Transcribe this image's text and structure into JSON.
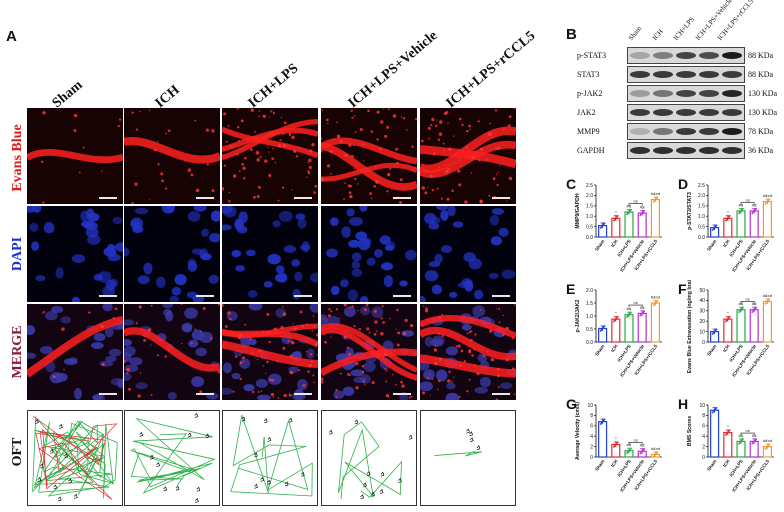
{
  "panel_a": {
    "letter": "A",
    "columns": [
      "Sham",
      "ICH",
      "ICH+LPS",
      "ICH+LPS+Vehicle",
      "ICH+LPS+rCCL5"
    ],
    "rows": [
      {
        "label": "Evans Blue",
        "color": "#e01b1b"
      },
      {
        "label": "DAPI",
        "color": "#1a2fd6"
      },
      {
        "label": "MERGE",
        "color": "#8a1a3a"
      },
      {
        "label": "OFT",
        "color": "#111111"
      }
    ]
  },
  "panel_b": {
    "letter": "B",
    "lanes": [
      "Sham",
      "ICH",
      "ICH+LPS",
      "ICH+LPS+Vehicle",
      "ICH+LPS+rCCL5"
    ],
    "bands": [
      {
        "protein": "p-STAT3",
        "size": "88 KDa"
      },
      {
        "protein": "STAT3",
        "size": "88 KDa"
      },
      {
        "protein": "p-JAK2",
        "size": "130 KDa"
      },
      {
        "protein": "JAK2",
        "size": "130 KDa"
      },
      {
        "protein": "MMP9",
        "size": "78 KDa"
      },
      {
        "protein": "GAPDH",
        "size": "36 KDa"
      }
    ]
  },
  "colors": {
    "sham": "#1f3fd6",
    "ich": "#e8262c",
    "lps": "#26a844",
    "vehicle": "#b42fd0",
    "rccl5": "#f39a2b"
  },
  "chart_data": [
    {
      "panel": "C",
      "type": "bar",
      "ylabel": "MMP9/GAPDH",
      "ylim": [
        0,
        2.5
      ],
      "yticks": [
        "0.0",
        "0.5",
        "1.0",
        "1.5",
        "2.0",
        "2.5"
      ],
      "categories": [
        "Sham",
        "ICH",
        "ICH+LPS",
        "ICH+LPS+Vehicle",
        "ICH+LPS+rCCL5"
      ],
      "values": [
        0.55,
        0.9,
        1.2,
        1.15,
        1.8
      ],
      "marks": [
        "",
        "*",
        "#&",
        "#&",
        "#&cd"
      ],
      "ns": "ns"
    },
    {
      "panel": "D",
      "type": "bar",
      "ylabel": "p-STAT3/STAT3",
      "ylim": [
        0,
        2.5
      ],
      "yticks": [
        "0.0",
        "0.5",
        "1.0",
        "1.5",
        "2.0",
        "2.5"
      ],
      "categories": [
        "Sham",
        "ICH",
        "ICH+LPS",
        "ICH+LPS+Vehicle",
        "ICH+LPS+rCCL5"
      ],
      "values": [
        0.45,
        0.9,
        1.25,
        1.25,
        1.7
      ],
      "marks": [
        "",
        "*",
        "#&",
        "#&",
        "#&cd"
      ],
      "ns": "ns"
    },
    {
      "panel": "E",
      "type": "bar",
      "ylabel": "p-JAK2/JAK2",
      "ylim": [
        0,
        2.0
      ],
      "yticks": [
        "0.0",
        "0.5",
        "1.0",
        "1.5",
        "2.0"
      ],
      "categories": [
        "Sham",
        "ICH",
        "ICH+LPS",
        "ICH+LPS+Vehicle",
        "ICH+LPS+rCCL5"
      ],
      "values": [
        0.52,
        0.88,
        1.05,
        1.1,
        1.5
      ],
      "marks": [
        "",
        "*",
        "#&",
        "#&",
        "#&cd"
      ],
      "ns": "ns"
    },
    {
      "panel": "F",
      "type": "bar",
      "ylabel": "Evans Blue Extravasation (ng/mg brain tissue)",
      "ylim": [
        0,
        50
      ],
      "yticks": [
        "0",
        "10",
        "20",
        "30",
        "40",
        "50"
      ],
      "categories": [
        "Sham",
        "ICH",
        "ICH+LPS",
        "ICH+LPS+Vehicle",
        "ICH+LPS+rCCL5"
      ],
      "values": [
        10,
        22,
        31,
        31,
        39
      ],
      "marks": [
        "",
        "*",
        "#&",
        "#&",
        "#&cd"
      ],
      "ns": "ns"
    },
    {
      "panel": "G",
      "type": "bar",
      "ylabel": "Average Velocity (cm/s)",
      "ylim": [
        0,
        10
      ],
      "yticks": [
        "0",
        "2",
        "4",
        "6",
        "8",
        "10"
      ],
      "categories": [
        "Sham",
        "ICH",
        "ICH+LPS",
        "ICH+LPS+Vehicle",
        "ICH+LPS+rCCL5"
      ],
      "values": [
        6.8,
        2.4,
        1.2,
        1.1,
        0.5
      ],
      "marks": [
        "",
        "*",
        "#&",
        "#&",
        "#&cd"
      ],
      "ns": "ns"
    },
    {
      "panel": "H",
      "type": "bar",
      "ylabel": "BMS Scores",
      "ylim": [
        0,
        10
      ],
      "yticks": [
        "0",
        "2",
        "4",
        "6",
        "8",
        "10"
      ],
      "categories": [
        "Sham",
        "ICH",
        "ICH+LPS",
        "ICH+LPS+Vehicle",
        "ICH+LPS+rCCL5"
      ],
      "values": [
        9,
        4.7,
        3,
        3,
        2
      ],
      "marks": [
        "",
        "*",
        "#&",
        "#&",
        "#&cd"
      ],
      "ns": "ns"
    }
  ]
}
